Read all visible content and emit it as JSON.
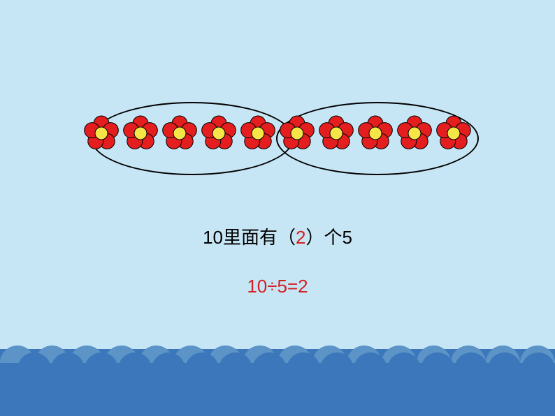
{
  "background": {
    "sky_color": "#c7e6f5",
    "water_color": "#3c77bb",
    "scallop_light": "#5c94c7",
    "scallop_dark": "#3c77bb"
  },
  "flowers": {
    "count": 10,
    "groups": 2,
    "per_group": 5,
    "petal_color": "#e41e1e",
    "center_color": "#f5e547",
    "stroke_color": "#000000"
  },
  "text": {
    "line1_prefix": "10里面有（",
    "line1_answer": "2",
    "line1_suffix": "）个5",
    "equation": "10÷5=2"
  },
  "colors": {
    "text_default": "#000000",
    "text_highlight": "#d32020"
  }
}
